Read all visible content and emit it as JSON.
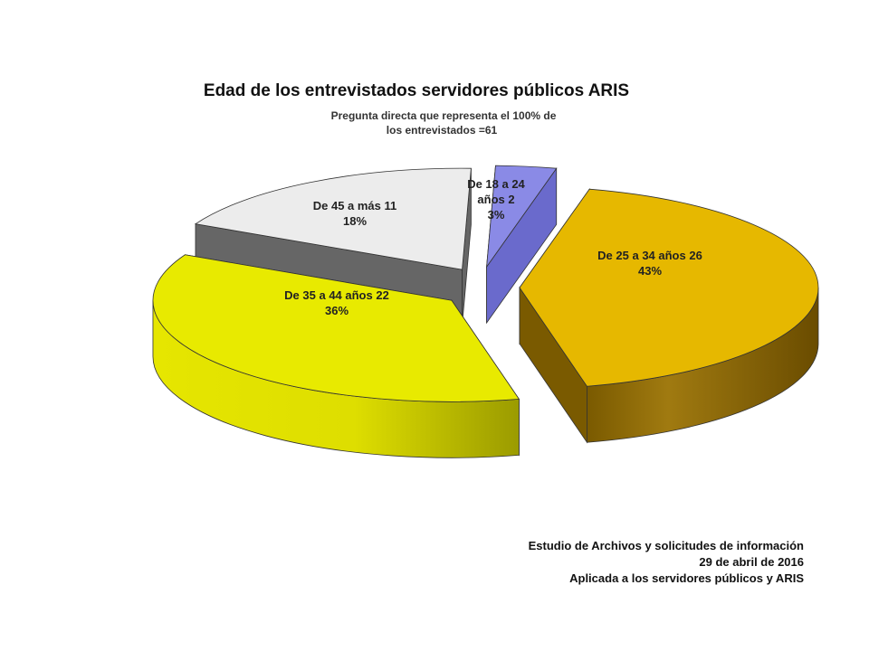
{
  "chart_data": {
    "type": "pie",
    "title": "Edad de los entrevistados servidores públicos ARIS",
    "subtitle": [
      "Pregunta directa que representa el 100% de",
      "los entrevistados  =61"
    ],
    "categories": [
      "De 18 a 24 años",
      "De 25 a 34 años",
      "De 35 a 44 años",
      "De 45 a más"
    ],
    "values": [
      2,
      26,
      22,
      11
    ],
    "percents": [
      3,
      43,
      36,
      18
    ],
    "labels": [
      [
        "De 18 a 24",
        "años 2",
        "3%"
      ],
      [
        "De 25 a 34 años 26",
        "43%"
      ],
      [
        "De 35 a 44 años 22",
        "36%"
      ],
      [
        "De 45 a más 11",
        "18%"
      ]
    ],
    "colors": [
      "#8a8ae6",
      "#e6b800",
      "#e8ea00",
      "#ececec"
    ],
    "side_colors": [
      "#6a6acc",
      "#7a5a00",
      "#c9c900",
      "#666666"
    ],
    "exploded": true,
    "three_d": true
  },
  "footer": {
    "line1": "Estudio de Archivos y solicitudes de información",
    "line2": "29 de abril de 2016",
    "line3": "Aplicada a los servidores públicos y ARIS"
  }
}
